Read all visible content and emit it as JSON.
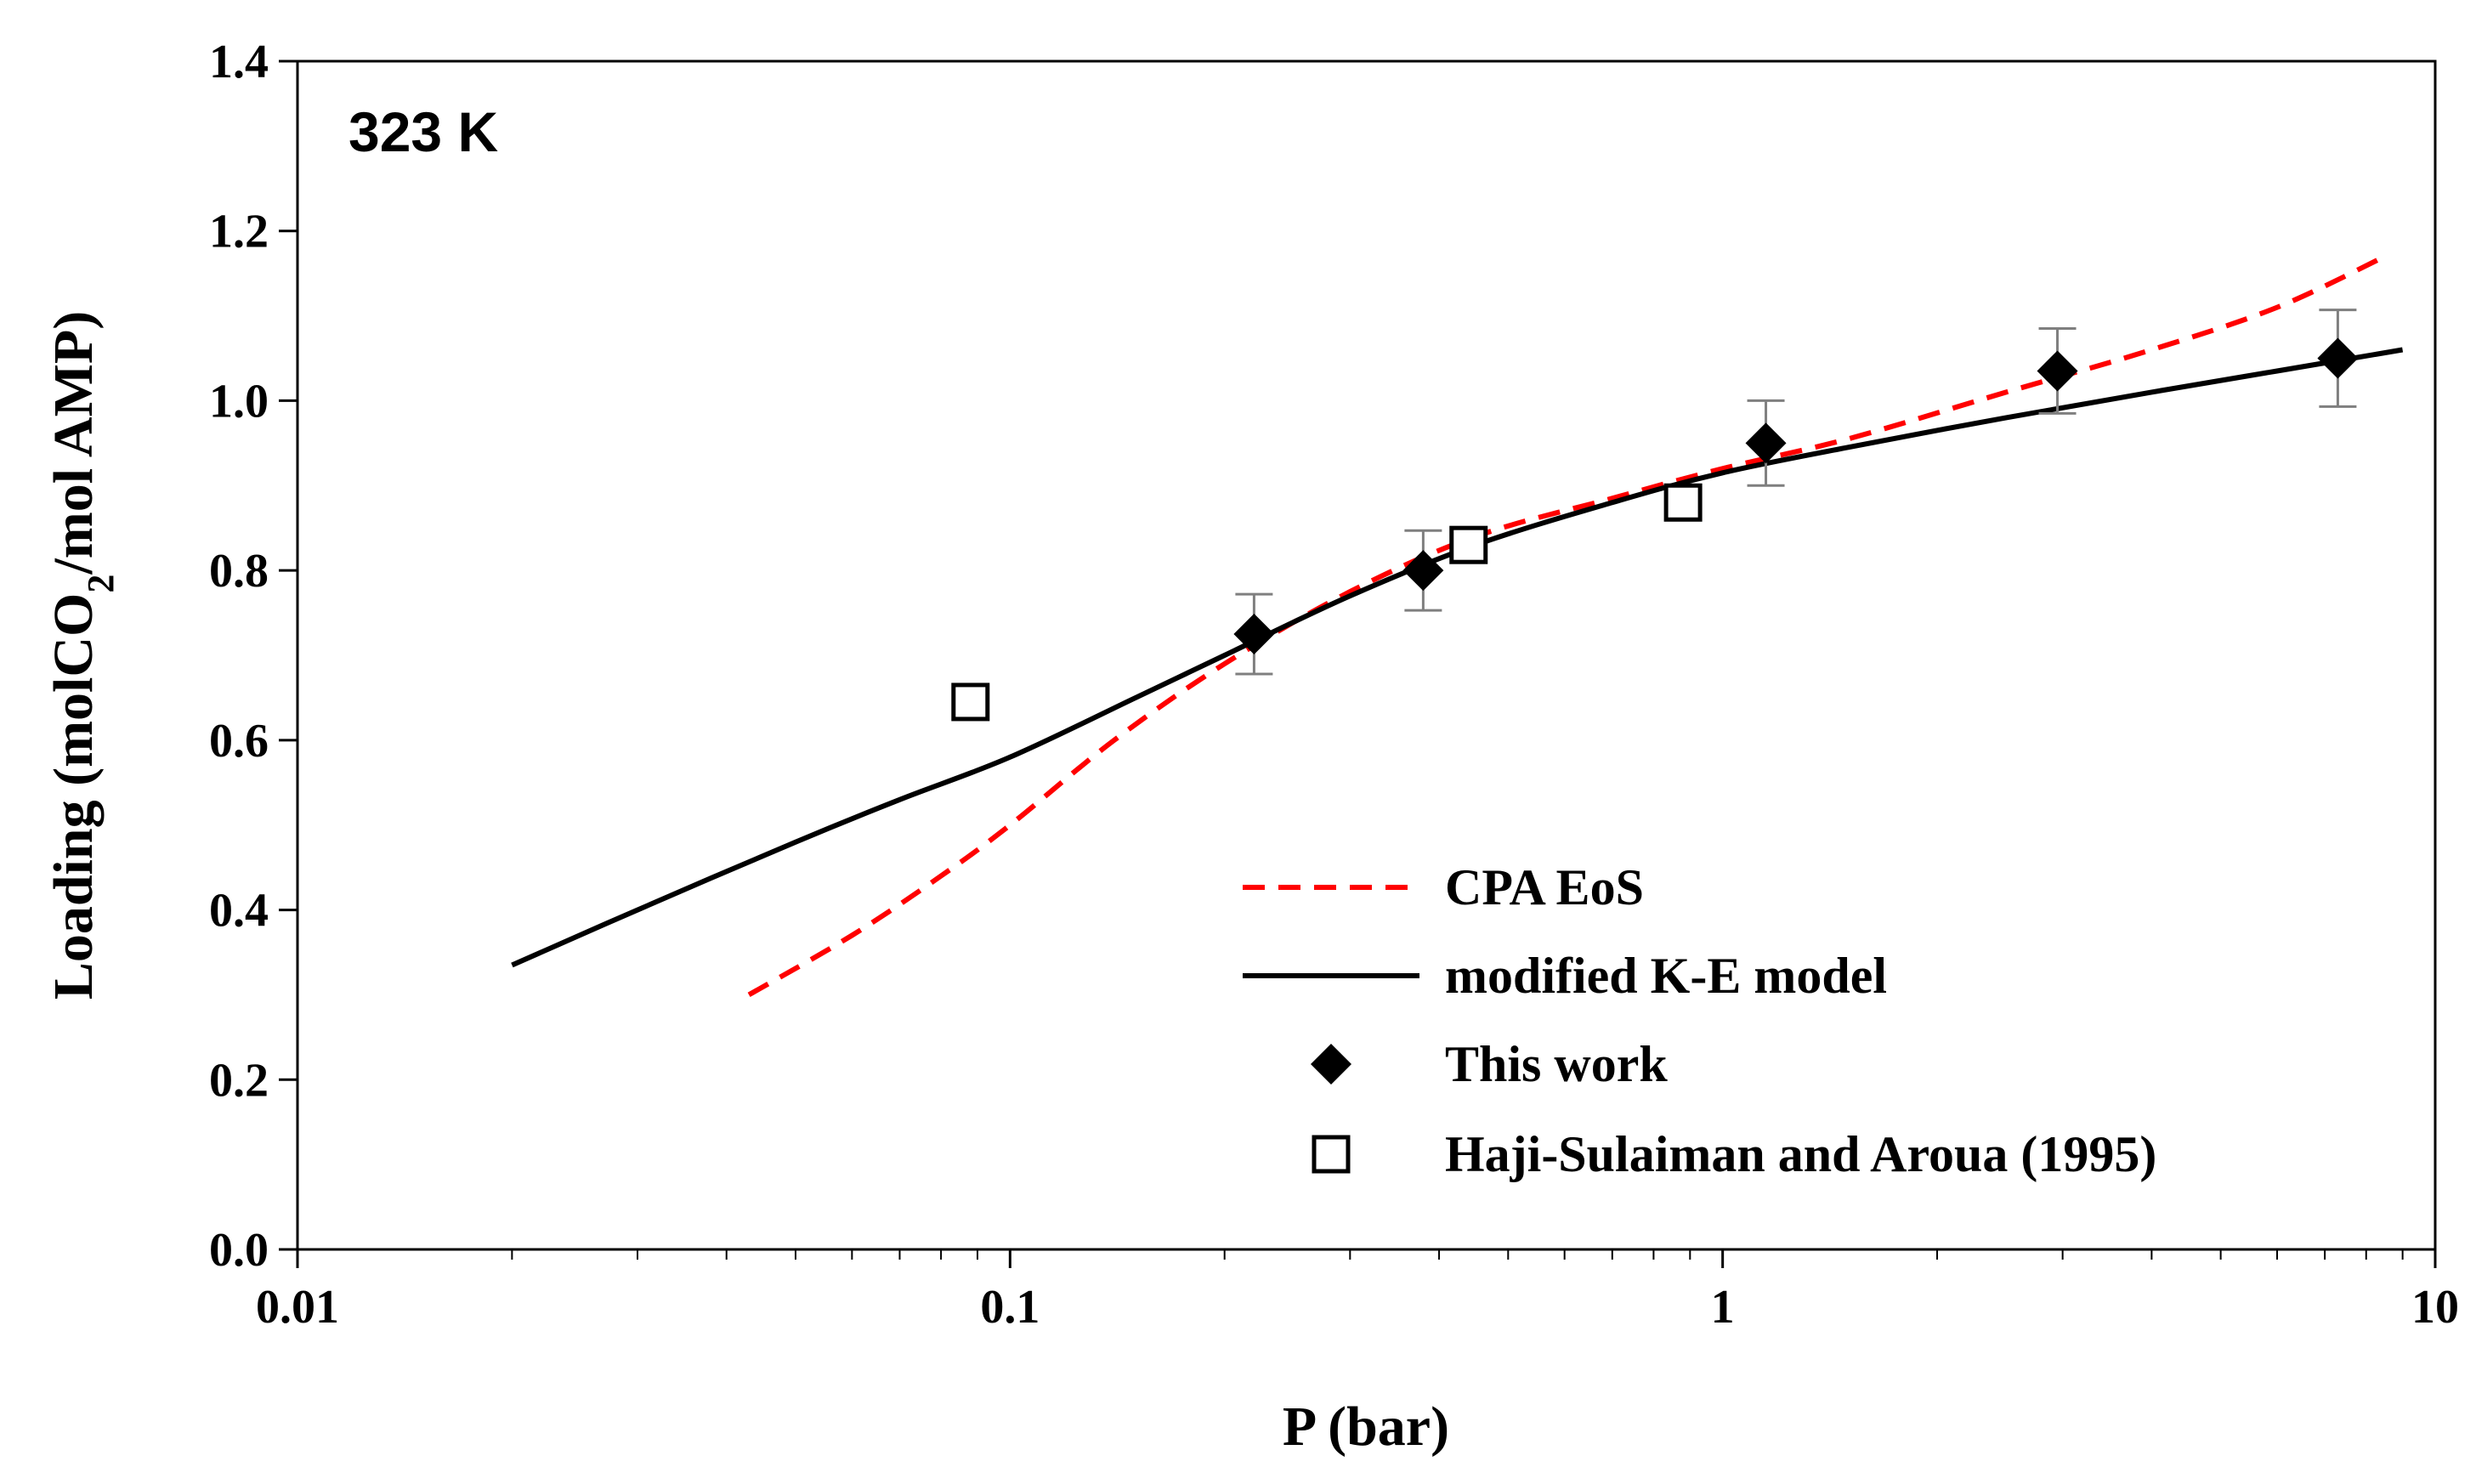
{
  "chart_data": {
    "type": "scatter",
    "annotation": "323 K",
    "xlabel": "P (bar)",
    "ylabel_parts": [
      "Loading (molCO",
      "2",
      "/mol AMP)"
    ],
    "x_scale": "log",
    "xlim": [
      0.01,
      10
    ],
    "ylim": [
      0.0,
      1.4
    ],
    "x_ticks": [
      0.01,
      0.1,
      1,
      10
    ],
    "x_tick_labels": [
      "0.01",
      "0.1",
      "1",
      "10"
    ],
    "y_ticks": [
      0.0,
      0.2,
      0.4,
      0.6,
      0.8,
      1.0,
      1.2,
      1.4
    ],
    "y_tick_labels": [
      "0.0",
      "0.2",
      "0.4",
      "0.6",
      "0.8",
      "1.0",
      "1.2",
      "1.4"
    ],
    "grid": false,
    "legend_position": "bottom-right",
    "series": [
      {
        "name": "CPA EoS",
        "kind": "line",
        "style": "dashed",
        "color": "#ff0000",
        "x": [
          0.043,
          0.06,
          0.08,
          0.1,
          0.14,
          0.2,
          0.3,
          0.45,
          0.7,
          1.0,
          1.5,
          2.5,
          4.0,
          6.0,
          8.5
        ],
        "y": [
          0.3,
          0.37,
          0.44,
          0.5,
          0.6,
          0.69,
          0.775,
          0.84,
          0.885,
          0.92,
          0.955,
          1.01,
          1.06,
          1.11,
          1.17
        ]
      },
      {
        "name": "modified K-E model",
        "kind": "line",
        "style": "solid",
        "color": "#000000",
        "x": [
          0.02,
          0.03,
          0.05,
          0.07,
          0.1,
          0.15,
          0.2,
          0.3,
          0.45,
          0.7,
          1.0,
          1.5,
          2.5,
          4.0,
          6.0,
          9.0
        ],
        "y": [
          0.335,
          0.4,
          0.48,
          0.53,
          0.58,
          0.65,
          0.7,
          0.77,
          0.83,
          0.88,
          0.915,
          0.945,
          0.98,
          1.01,
          1.035,
          1.06
        ]
      },
      {
        "name": "This work",
        "kind": "points",
        "marker": "diamond",
        "color": "#000000",
        "x": [
          0.22,
          0.38,
          1.15,
          2.95,
          7.3
        ],
        "y": [
          0.725,
          0.8,
          0.95,
          1.035,
          1.05
        ],
        "err": [
          0.047,
          0.047,
          0.05,
          0.05,
          0.057
        ]
      },
      {
        "name": "Haji-Sulaiman and Aroua (1995)",
        "kind": "points",
        "marker": "open-square",
        "color": "#000000",
        "x": [
          0.088,
          0.44,
          0.88
        ],
        "y": [
          0.645,
          0.83,
          0.88
        ]
      }
    ]
  }
}
